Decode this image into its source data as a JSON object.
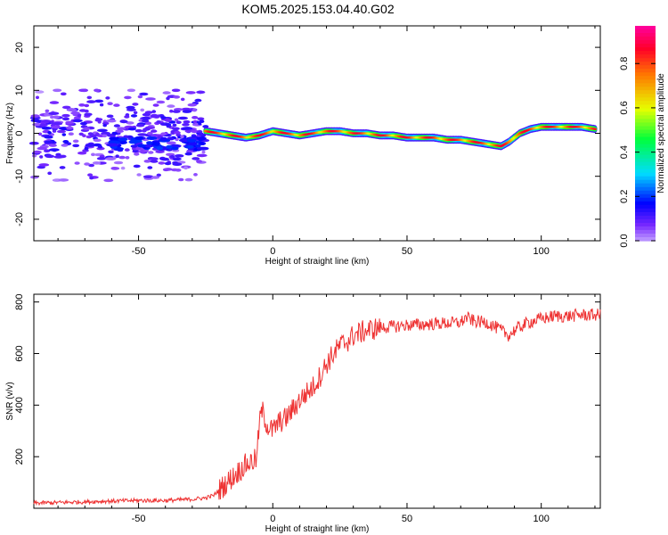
{
  "title": "KOM5.2025.153.04.40.G02",
  "chart_data": [
    {
      "type": "heatmap",
      "xlabel": "Height of straight line (km)",
      "ylabel": "Frequency (Hz)",
      "xlim": [
        -89,
        122
      ],
      "ylim": [
        -25,
        25
      ],
      "xticks": [
        -50,
        0,
        50,
        100
      ],
      "yticks": [
        -20,
        -10,
        0,
        10,
        20
      ],
      "grid": false,
      "colorbar": {
        "label": "Normalized spectral amplitude",
        "range": [
          0,
          0.97
        ],
        "ticks": [
          0.0,
          0.2,
          0.4,
          0.6,
          0.8
        ],
        "colormap": "rainbow"
      },
      "ridge": {
        "x": [
          -25,
          -20,
          -15,
          -10,
          -5,
          0,
          5,
          10,
          15,
          20,
          25,
          30,
          35,
          40,
          45,
          50,
          55,
          60,
          65,
          70,
          75,
          80,
          85,
          88,
          92,
          96,
          100,
          105,
          110,
          115,
          120
        ],
        "y": [
          0.5,
          0,
          -0.5,
          -1,
          -0.5,
          0.5,
          0,
          -0.5,
          0,
          0.5,
          0.5,
          0,
          0,
          -0.5,
          -0.5,
          -1,
          -1,
          -1,
          -1.5,
          -1.5,
          -2,
          -2.5,
          -3,
          -2,
          0,
          1,
          1.5,
          1.5,
          1.5,
          1.5,
          1
        ]
      },
      "noise_region": {
        "x_range": [
          -89,
          -25
        ],
        "y_range": [
          -12,
          10
        ]
      }
    },
    {
      "type": "line",
      "xlabel": "Height of straight line (km)",
      "ylabel": "SNR (v/v)",
      "xlim": [
        -89,
        122
      ],
      "ylim": [
        0,
        830
      ],
      "xticks": [
        -50,
        0,
        50,
        100
      ],
      "yticks": [
        200,
        400,
        600,
        800
      ],
      "grid": false,
      "series": [
        {
          "color": "#ee3333",
          "x": [
            -89,
            -80,
            -70,
            -60,
            -50,
            -40,
            -30,
            -25,
            -22,
            -20,
            -18,
            -15,
            -12,
            -10,
            -8,
            -6,
            -5,
            -4,
            -2,
            0,
            2,
            5,
            8,
            10,
            12,
            15,
            18,
            20,
            22,
            25,
            28,
            30,
            35,
            40,
            45,
            50,
            55,
            60,
            65,
            70,
            72,
            75,
            80,
            85,
            88,
            90,
            95,
            100,
            105,
            110,
            115,
            122
          ],
          "y": [
            20,
            22,
            25,
            28,
            30,
            30,
            35,
            40,
            50,
            70,
            90,
            120,
            150,
            170,
            180,
            190,
            330,
            380,
            320,
            300,
            330,
            350,
            390,
            420,
            440,
            470,
            520,
            560,
            590,
            630,
            650,
            670,
            690,
            700,
            705,
            710,
            712,
            715,
            718,
            720,
            740,
            725,
            720,
            690,
            670,
            690,
            720,
            735,
            745,
            745,
            750,
            750
          ]
        }
      ]
    }
  ]
}
